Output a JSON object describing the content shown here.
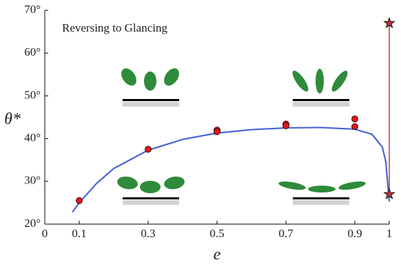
{
  "chart_data": {
    "type": "scatter",
    "annotation": "Reversing to Glancing",
    "xlabel": "e",
    "ylabel": "θ*",
    "xlim": [
      0,
      1
    ],
    "ylim": [
      20,
      70
    ],
    "xticks": [
      0,
      0.1,
      0.3,
      0.5,
      0.7,
      0.9,
      1
    ],
    "yticks": [
      {
        "value": 20,
        "label": "20°"
      },
      {
        "value": 30,
        "label": "30°"
      },
      {
        "value": 40,
        "label": "40°"
      },
      {
        "value": 50,
        "label": "50°"
      },
      {
        "value": 60,
        "label": "60°"
      },
      {
        "value": 70,
        "label": "70°"
      }
    ],
    "curve": {
      "color": "#4a63d8",
      "x": [
        0.08,
        0.1,
        0.15,
        0.2,
        0.3,
        0.4,
        0.5,
        0.6,
        0.7,
        0.8,
        0.9,
        0.95,
        0.98,
        0.99,
        1.0
      ],
      "values": [
        22.8,
        25,
        29.5,
        33,
        37.3,
        39.8,
        41.3,
        42.1,
        42.5,
        42.6,
        42.2,
        41,
        38,
        34.5,
        25.3
      ]
    },
    "points": {
      "color": "#e8141a",
      "x": [
        0.1,
        0.3,
        0.5,
        0.5,
        0.7,
        0.7,
        0.9,
        0.9
      ],
      "values": [
        25.5,
        37.5,
        42,
        41.6,
        43.4,
        43,
        44.6,
        42.8
      ]
    },
    "stars": {
      "color": "#b8323a",
      "line_color": "#c0392b",
      "x": [
        1,
        1
      ],
      "values": [
        67,
        27
      ]
    }
  }
}
